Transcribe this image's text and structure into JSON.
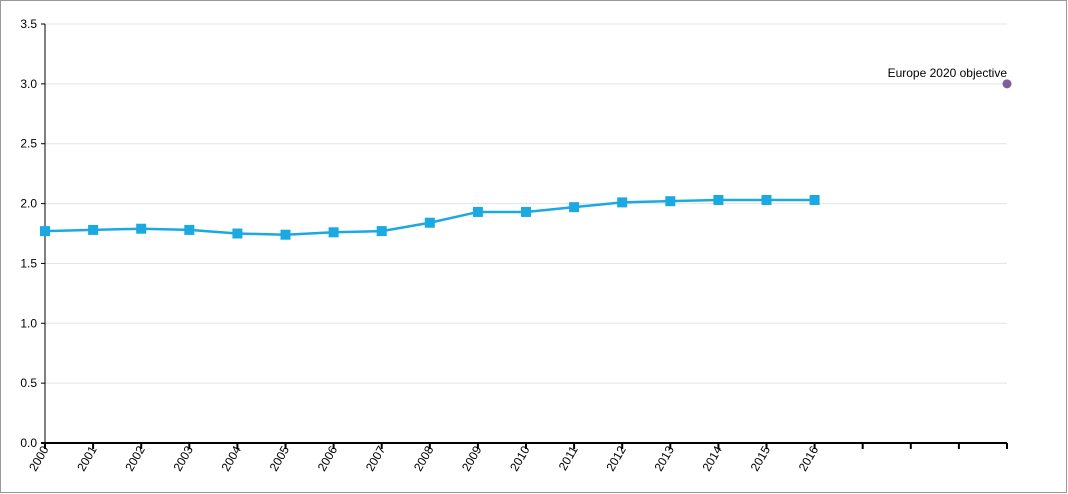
{
  "chart_data": {
    "type": "line",
    "categories": [
      "2000",
      "2001",
      "2002",
      "2003",
      "2004",
      "2005",
      "2006",
      "2007",
      "2008",
      "2009",
      "2010",
      "2011",
      "2012",
      "2013",
      "2014",
      "2015",
      "2016",
      null,
      null,
      null,
      null
    ],
    "series": [
      {
        "color": "#1ba9e1",
        "marker": "square",
        "values": [
          1.77,
          1.78,
          1.79,
          1.78,
          1.75,
          1.74,
          1.76,
          1.77,
          1.84,
          1.93,
          1.93,
          1.97,
          2.01,
          2.02,
          2.03,
          2.03,
          2.03,
          null,
          null,
          null,
          null
        ]
      },
      {
        "name": "Europe 2020 objective",
        "color": "#7e5f9a",
        "marker": "circle",
        "values": [
          null,
          null,
          null,
          null,
          null,
          null,
          null,
          null,
          null,
          null,
          null,
          null,
          null,
          null,
          null,
          null,
          null,
          null,
          null,
          null,
          3.0
        ]
      }
    ],
    "ylim": [
      0,
      3.5
    ],
    "yticks": [
      {
        "value": 0,
        "label": "0.0"
      },
      0.5,
      {
        "value": 1,
        "label": "1.0"
      },
      1.5,
      {
        "value": 2,
        "label": "2.0"
      },
      2.5,
      {
        "value": 3,
        "label": "3.0"
      },
      3.5
    ],
    "grid": true
  }
}
